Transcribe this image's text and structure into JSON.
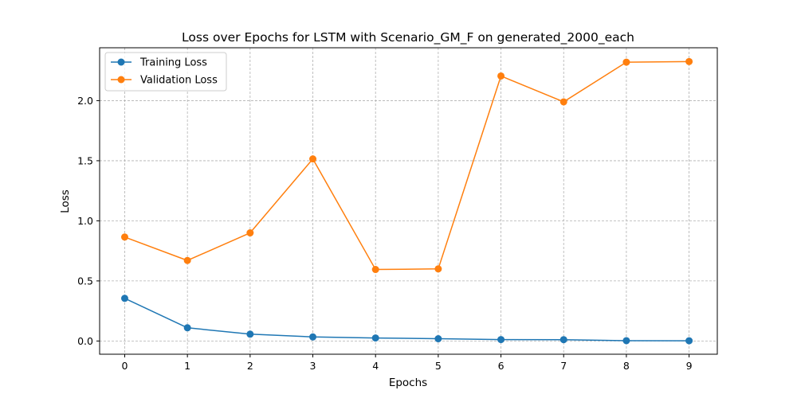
{
  "chart_data": {
    "type": "line",
    "title": "Loss over Epochs for LSTM with Scenario_GM_F on generated_2000_each",
    "xlabel": "Epochs",
    "ylabel": "Loss",
    "x": [
      0,
      1,
      2,
      3,
      4,
      5,
      6,
      7,
      8,
      9
    ],
    "xlim": [
      -0.4,
      9.45
    ],
    "ylim": [
      -0.11,
      2.44
    ],
    "xticks": [
      "0",
      "1",
      "2",
      "3",
      "4",
      "5",
      "6",
      "7",
      "8",
      "9"
    ],
    "yticks": [
      "0.0",
      "0.5",
      "1.0",
      "1.5",
      "2.0"
    ],
    "ytick_values": [
      0.0,
      0.5,
      1.0,
      1.5,
      2.0
    ],
    "grid": true,
    "legend_position": "top-left",
    "series": [
      {
        "name": "Training Loss",
        "color": "#1f77b4",
        "marker": "circle",
        "values": [
          0.355,
          0.11,
          0.057,
          0.034,
          0.025,
          0.019,
          0.012,
          0.011,
          0.003,
          0.002
        ]
      },
      {
        "name": "Validation Loss",
        "color": "#ff7f0e",
        "marker": "circle",
        "values": [
          0.865,
          0.67,
          0.9,
          1.515,
          0.595,
          0.6,
          2.205,
          1.99,
          2.32,
          2.325
        ]
      }
    ]
  }
}
